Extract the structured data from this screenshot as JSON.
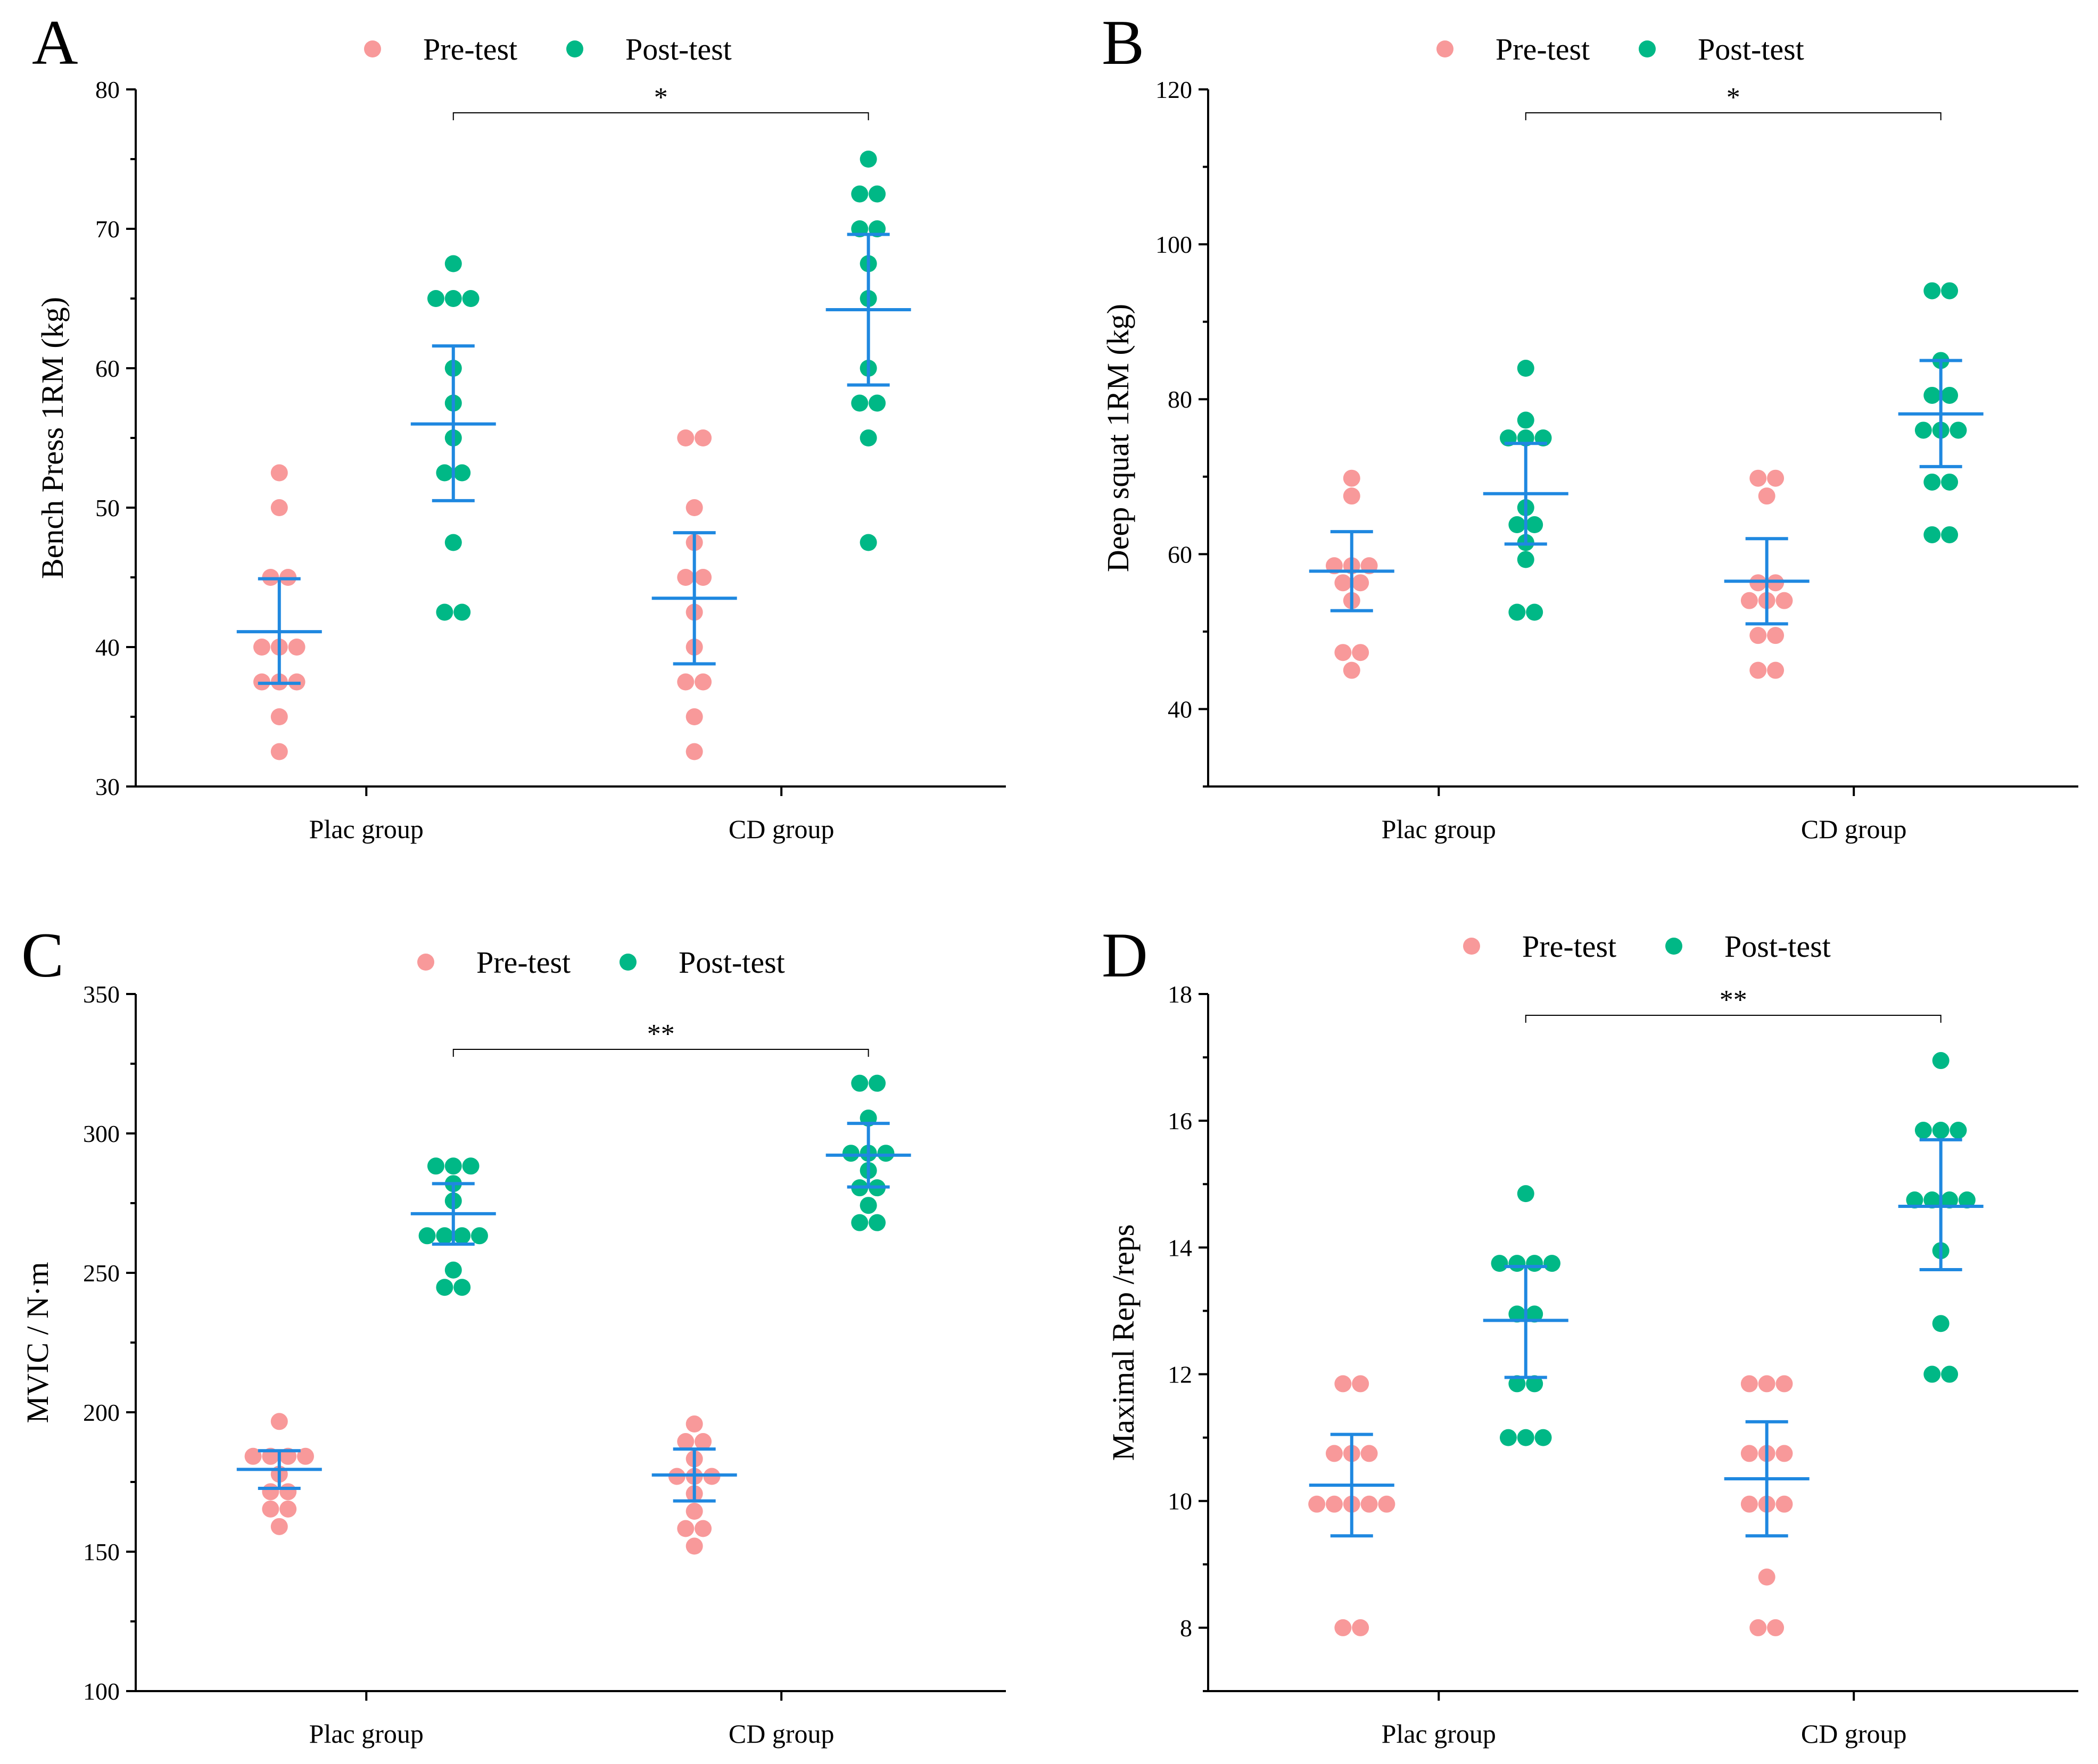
{
  "colors": {
    "pre": "#f8999a",
    "post": "#00b886",
    "stats": "#1f88e0"
  },
  "chart_data": [
    {
      "type": "scatter",
      "panel": "A",
      "ylabel": "Bench Press 1RM (kg)",
      "ylim": [
        30,
        80
      ],
      "yticks": [
        30,
        40,
        50,
        60,
        70,
        80
      ],
      "categories": [
        "Plac group",
        "CD group"
      ],
      "legend": [
        "Pre-test",
        "Post-test"
      ],
      "significance": "*",
      "series": [
        {
          "name": "Pre-test",
          "group": "Plac group",
          "values": [
            52.5,
            50,
            45,
            45,
            40,
            40,
            40,
            37.5,
            37.5,
            37.5,
            35,
            32.5
          ],
          "mean": 41.1,
          "ci": [
            37.4,
            44.9
          ]
        },
        {
          "name": "Post-test",
          "group": "Plac group",
          "values": [
            67.5,
            65,
            65,
            65,
            60,
            57.5,
            55,
            52.5,
            52.5,
            47.5,
            42.5,
            42.5
          ],
          "mean": 56.0,
          "ci": [
            50.5,
            61.6
          ]
        },
        {
          "name": "Pre-test",
          "group": "CD group",
          "values": [
            55,
            55,
            50,
            47.5,
            45,
            45,
            42.5,
            40,
            37.5,
            37.5,
            35,
            32.5
          ],
          "mean": 43.5,
          "ci": [
            38.8,
            48.2
          ]
        },
        {
          "name": "Post-test",
          "group": "CD group",
          "values": [
            75,
            72.5,
            72.5,
            70,
            70,
            67.5,
            65,
            60,
            57.5,
            57.5,
            55,
            47.5
          ],
          "mean": 64.2,
          "ci": [
            58.8,
            69.6
          ]
        }
      ]
    },
    {
      "type": "scatter",
      "panel": "B",
      "ylabel": "Deep squat 1RM (kg)",
      "ylim": [
        30,
        120
      ],
      "yticks": [
        40,
        60,
        80,
        100,
        120
      ],
      "categories": [
        "Plac group",
        "CD group"
      ],
      "legend": [
        "Pre-test",
        "Post-test"
      ],
      "significance": "*",
      "series": [
        {
          "name": "Pre-test",
          "group": "Plac group",
          "values": [
            69.8,
            67.5,
            58.5,
            58.5,
            58.5,
            56.3,
            56.3,
            54,
            47.3,
            47.3,
            45
          ],
          "mean": 57.8,
          "ci": [
            52.7,
            62.9
          ]
        },
        {
          "name": "Post-test",
          "group": "Plac group",
          "values": [
            84,
            77.3,
            75,
            75,
            75,
            66,
            63.8,
            63.8,
            61.5,
            59.3,
            52.5,
            52.5
          ],
          "mean": 67.8,
          "ci": [
            61.3,
            74.3
          ]
        },
        {
          "name": "Pre-test",
          "group": "CD group",
          "values": [
            69.8,
            69.8,
            67.5,
            56.3,
            56.3,
            54,
            54,
            54,
            49.5,
            49.5,
            45,
            45
          ],
          "mean": 56.5,
          "ci": [
            51,
            62
          ]
        },
        {
          "name": "Post-test",
          "group": "CD group",
          "values": [
            94,
            94,
            85,
            80.5,
            80.5,
            76,
            76,
            76,
            69.3,
            69.3,
            62.5,
            62.5
          ],
          "mean": 78.1,
          "ci": [
            71.3,
            85
          ]
        }
      ]
    },
    {
      "type": "scatter",
      "panel": "C",
      "ylabel": "MVIC / N·m",
      "ylim": [
        100,
        350
      ],
      "yticks": [
        100,
        150,
        200,
        250,
        300,
        350
      ],
      "categories": [
        "Plac group",
        "CD group"
      ],
      "legend": [
        "Pre-test",
        "Post-test"
      ],
      "significance": "**",
      "series": [
        {
          "name": "Pre-test",
          "group": "Plac group",
          "values": [
            196.7,
            184.2,
            184.2,
            184.2,
            184.2,
            177.8,
            171.5,
            171.5,
            165.3,
            165.3,
            159
          ],
          "mean": 179.5,
          "ci": [
            172.7,
            186.2
          ]
        },
        {
          "name": "Post-test",
          "group": "Plac group",
          "values": [
            288.3,
            288.3,
            288.3,
            282,
            275.8,
            263.3,
            263.3,
            263.3,
            263.3,
            251,
            244.8,
            244.8
          ],
          "mean": 271.2,
          "ci": [
            260.3,
            282
          ]
        },
        {
          "name": "Pre-test",
          "group": "CD group",
          "values": [
            195.8,
            189.5,
            189.5,
            183.3,
            177,
            177,
            177,
            170.8,
            164.5,
            158.3,
            158.3,
            152
          ],
          "mean": 177.5,
          "ci": [
            168.2,
            186.8
          ]
        },
        {
          "name": "Post-test",
          "group": "CD group",
          "values": [
            318,
            318,
            305.5,
            292.9,
            292.9,
            292.9,
            286.7,
            280.5,
            280.5,
            274.2,
            268,
            268
          ],
          "mean": 292.2,
          "ci": [
            280.8,
            303.6
          ]
        }
      ]
    },
    {
      "type": "scatter",
      "panel": "D",
      "ylabel": "Maximal Rep /reps",
      "ylim": [
        7,
        18
      ],
      "yticks": [
        8,
        10,
        12,
        14,
        16,
        18
      ],
      "categories": [
        "Plac group",
        "CD group"
      ],
      "legend": [
        "Pre-test",
        "Post-test"
      ],
      "significance": "**",
      "series": [
        {
          "name": "Pre-test",
          "group": "Plac group",
          "values": [
            11.85,
            11.85,
            10.75,
            10.75,
            10.75,
            9.95,
            9.95,
            9.95,
            9.95,
            9.95,
            8,
            8
          ],
          "mean": 10.25,
          "ci": [
            9.45,
            11.05
          ]
        },
        {
          "name": "Post-test",
          "group": "Plac group",
          "values": [
            14.85,
            13.75,
            13.75,
            13.75,
            13.75,
            12.95,
            12.95,
            11.85,
            11.85,
            11,
            11,
            11
          ],
          "mean": 12.85,
          "ci": [
            11.95,
            13.7
          ]
        },
        {
          "name": "Pre-test",
          "group": "CD group",
          "values": [
            11.85,
            11.85,
            11.85,
            10.75,
            10.75,
            10.75,
            9.95,
            9.95,
            9.95,
            8.8,
            8,
            8
          ],
          "mean": 10.35,
          "ci": [
            9.45,
            11.25
          ]
        },
        {
          "name": "Post-test",
          "group": "CD group",
          "values": [
            16.95,
            15.85,
            15.85,
            15.85,
            14.75,
            14.75,
            14.75,
            14.75,
            13.95,
            12.8,
            12,
            12
          ],
          "mean": 14.65,
          "ci": [
            13.65,
            15.7
          ]
        }
      ]
    }
  ]
}
